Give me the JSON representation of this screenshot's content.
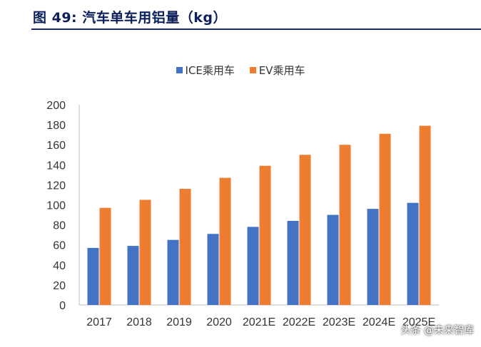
{
  "figure": {
    "title": "图 49: 汽车单车用铝量（kg）"
  },
  "watermark": "头条 @未来智库",
  "colors": {
    "ice": "#4472C4",
    "ev": "#ED7D31",
    "title": "#0a1f5c"
  },
  "chart_data": {
    "type": "bar",
    "categories": [
      "2017",
      "2018",
      "2019",
      "2020",
      "2021E",
      "2022E",
      "2023E",
      "2024E",
      "2025E"
    ],
    "series": [
      {
        "name": "ICE乘用车",
        "values": [
          57,
          59,
          65,
          71,
          78,
          84,
          90,
          96,
          102
        ]
      },
      {
        "name": "EV乘用车",
        "values": [
          97,
          105,
          116,
          127,
          139,
          150,
          160,
          171,
          179
        ]
      }
    ],
    "yticks": [
      "0",
      "20",
      "40",
      "60",
      "80",
      "100",
      "120",
      "140",
      "160",
      "180",
      "200"
    ],
    "ylim": [
      0,
      200
    ],
    "legend_position": "top-center",
    "grid": false
  }
}
